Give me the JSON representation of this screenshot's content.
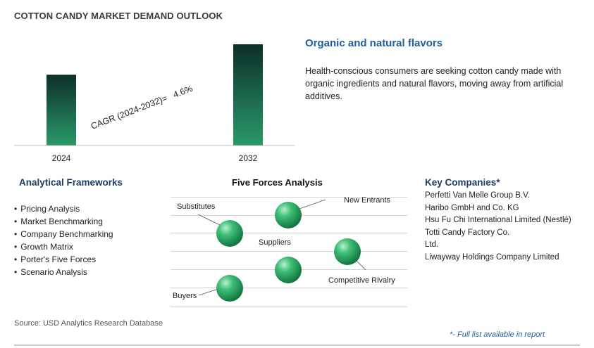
{
  "title": "COTTON CANDY MARKET DEMAND OUTLOOK",
  "chart_data": {
    "type": "bar",
    "categories": [
      "2024",
      "2032"
    ],
    "values": [
      1.0,
      1.43
    ],
    "cagr_label": "CAGR (2024-2032)=",
    "cagr_value": "4.6%",
    "bar_colors": [
      "#1e8a5e",
      "#0d2f2a"
    ]
  },
  "headline": "Organic and natural flavors",
  "description": "Health-conscious consumers are seeking cotton candy made with organic ingredients and natural flavors, moving away from artificial additives.",
  "frameworks": {
    "heading": "Analytical Frameworks",
    "items": [
      "Pricing Analysis",
      "Market Benchmarking",
      "Company Benchmarking",
      "Growth Matrix",
      "Porter's Five Forces",
      "Scenario Analysis"
    ]
  },
  "five_forces": {
    "heading": "Five Forces Analysis",
    "labels": {
      "substitutes": "Substitutes",
      "new_entrants": "New Entrants",
      "suppliers": "Suppliers",
      "competitive_rivalry": "Competitive Rivalry",
      "buyers": "Buyers"
    },
    "sphere_color": "#2fa866"
  },
  "key_companies": {
    "heading": "Key Companies*",
    "items": [
      "Perfetti Van Melle Group B.V.",
      "Haribo GmbH and Co. KG",
      "Hsu Fu Chi International Limited (Nestlé)",
      "Totti Candy Factory Co.",
      "Ltd.",
      "Liwayway Holdings Company Limited"
    ]
  },
  "source": "Source: USD Analytics Research Database",
  "footnote": "*- Full list available in report"
}
